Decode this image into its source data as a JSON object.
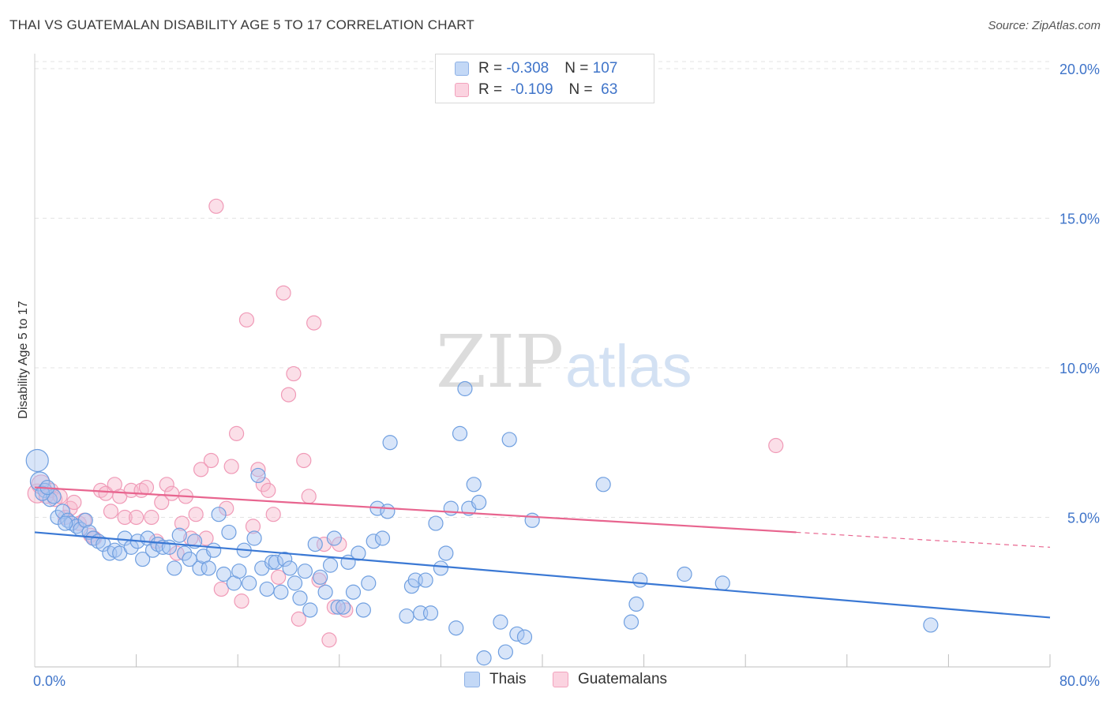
{
  "header": {
    "title": "THAI VS GUATEMALAN DISABILITY AGE 5 TO 17 CORRELATION CHART",
    "source": "Source: ZipAtlas.com"
  },
  "watermark": {
    "zip": "ZIP",
    "atlas": "atlas"
  },
  "legend": {
    "rows": [
      {
        "r_label": "R = ",
        "r_value": "-0.308",
        "n_label": "N = ",
        "n_value": "107",
        "color": "#a9c6f2"
      },
      {
        "r_label": "R = ",
        "r_value": " -0.109",
        "n_label": "N = ",
        "n_value": " 63",
        "color": "#f7b8cc"
      }
    ]
  },
  "bottom_legend": [
    {
      "label": "Thais",
      "color": "#a9c6f2"
    },
    {
      "label": "Guatemalans",
      "color": "#f7b8cc"
    }
  ],
  "chart_data": {
    "type": "scatter",
    "title": "THAI VS GUATEMALAN DISABILITY AGE 5 TO 17 CORRELATION CHART",
    "xlabel": "",
    "ylabel": "Disability Age 5 to 17",
    "xlim": [
      0,
      80
    ],
    "ylim": [
      0,
      20.5
    ],
    "x_tick_labels": [
      "0.0%",
      "80.0%"
    ],
    "y_ticks": [
      5,
      10,
      15,
      20
    ],
    "y_tick_labels": [
      "5.0%",
      "10.0%",
      "15.0%",
      "20.0%"
    ],
    "grid": true,
    "legend_position": "top-center",
    "colors": {
      "thais": "#3a78d4",
      "guatemalans": "#e8658f"
    },
    "series": [
      {
        "name": "Thais",
        "r": -0.308,
        "n": 107,
        "trend": {
          "x": [
            0,
            80
          ],
          "y": [
            4.5,
            1.65
          ]
        },
        "points": [
          [
            0.2,
            6.9
          ],
          [
            0.4,
            6.2
          ],
          [
            0.8,
            5.9
          ],
          [
            1.2,
            5.6
          ],
          [
            1.5,
            5.7
          ],
          [
            1.8,
            5.0
          ],
          [
            2.2,
            5.2
          ],
          [
            2.6,
            4.9
          ],
          [
            2.9,
            4.8
          ],
          [
            3.3,
            4.7
          ],
          [
            3.6,
            4.6
          ],
          [
            4.0,
            4.9
          ],
          [
            4.3,
            4.5
          ],
          [
            4.6,
            4.3
          ],
          [
            5.0,
            4.2
          ],
          [
            5.4,
            4.1
          ],
          [
            5.9,
            3.8
          ],
          [
            6.3,
            3.9
          ],
          [
            6.7,
            3.8
          ],
          [
            7.1,
            4.3
          ],
          [
            7.6,
            4.0
          ],
          [
            8.1,
            4.2
          ],
          [
            8.5,
            3.6
          ],
          [
            8.9,
            4.3
          ],
          [
            9.3,
            3.9
          ],
          [
            9.7,
            4.1
          ],
          [
            10.1,
            4.0
          ],
          [
            10.6,
            4.0
          ],
          [
            11.0,
            3.3
          ],
          [
            11.4,
            4.4
          ],
          [
            11.8,
            3.8
          ],
          [
            12.2,
            3.6
          ],
          [
            12.6,
            4.2
          ],
          [
            13.0,
            3.3
          ],
          [
            13.3,
            3.7
          ],
          [
            13.7,
            3.3
          ],
          [
            14.1,
            3.9
          ],
          [
            14.5,
            5.1
          ],
          [
            14.9,
            3.1
          ],
          [
            15.3,
            4.5
          ],
          [
            15.7,
            2.8
          ],
          [
            16.1,
            3.2
          ],
          [
            16.5,
            3.9
          ],
          [
            16.9,
            2.8
          ],
          [
            17.3,
            4.3
          ],
          [
            17.6,
            6.4
          ],
          [
            17.9,
            3.3
          ],
          [
            18.3,
            2.6
          ],
          [
            18.7,
            3.5
          ],
          [
            19.0,
            3.5
          ],
          [
            19.4,
            2.5
          ],
          [
            19.7,
            3.6
          ],
          [
            20.1,
            3.3
          ],
          [
            20.5,
            2.8
          ],
          [
            20.9,
            2.3
          ],
          [
            21.3,
            3.2
          ],
          [
            21.7,
            1.9
          ],
          [
            22.1,
            4.1
          ],
          [
            22.5,
            3.0
          ],
          [
            22.9,
            2.5
          ],
          [
            23.3,
            3.4
          ],
          [
            23.6,
            4.3
          ],
          [
            23.9,
            2.0
          ],
          [
            24.3,
            2.0
          ],
          [
            24.7,
            3.5
          ],
          [
            25.1,
            2.5
          ],
          [
            25.5,
            3.8
          ],
          [
            25.9,
            1.9
          ],
          [
            26.3,
            2.8
          ],
          [
            26.7,
            4.2
          ],
          [
            27.0,
            5.3
          ],
          [
            27.4,
            4.3
          ],
          [
            27.8,
            5.2
          ],
          [
            28.0,
            7.5
          ],
          [
            29.3,
            1.7
          ],
          [
            29.7,
            2.7
          ],
          [
            30.0,
            2.9
          ],
          [
            30.4,
            1.8
          ],
          [
            30.8,
            2.9
          ],
          [
            31.2,
            1.8
          ],
          [
            31.6,
            4.8
          ],
          [
            32.0,
            3.3
          ],
          [
            32.4,
            3.8
          ],
          [
            32.8,
            5.3
          ],
          [
            33.2,
            1.3
          ],
          [
            33.5,
            7.8
          ],
          [
            33.9,
            9.3
          ],
          [
            34.2,
            5.3
          ],
          [
            34.6,
            6.1
          ],
          [
            35.0,
            5.5
          ],
          [
            35.4,
            0.3
          ],
          [
            36.7,
            1.5
          ],
          [
            37.1,
            0.5
          ],
          [
            37.4,
            7.6
          ],
          [
            38.0,
            1.1
          ],
          [
            38.6,
            1.0
          ],
          [
            39.2,
            4.9
          ],
          [
            44.8,
            6.1
          ],
          [
            47.0,
            1.5
          ],
          [
            47.4,
            2.1
          ],
          [
            47.7,
            2.9
          ],
          [
            51.2,
            3.1
          ],
          [
            54.2,
            2.8
          ],
          [
            70.6,
            1.4
          ],
          [
            0.6,
            5.8
          ],
          [
            1.0,
            6.0
          ],
          [
            2.4,
            4.8
          ]
        ]
      },
      {
        "name": "Guatemalans",
        "r": -0.109,
        "n": 63,
        "trend": {
          "x": [
            0,
            60
          ],
          "y": [
            6.0,
            4.5
          ]
        },
        "trend_extension": {
          "x": [
            60,
            80
          ],
          "y": [
            4.5,
            4.0
          ]
        },
        "points": [
          [
            0.2,
            5.8
          ],
          [
            0.5,
            6.1
          ],
          [
            0.9,
            5.7
          ],
          [
            1.3,
            5.9
          ],
          [
            1.6,
            5.6
          ],
          [
            2.0,
            5.7
          ],
          [
            2.4,
            5.0
          ],
          [
            2.8,
            5.3
          ],
          [
            3.1,
            5.5
          ],
          [
            3.5,
            4.8
          ],
          [
            3.9,
            4.9
          ],
          [
            4.4,
            4.4
          ],
          [
            4.7,
            4.3
          ],
          [
            5.2,
            5.9
          ],
          [
            5.6,
            5.8
          ],
          [
            6.0,
            5.2
          ],
          [
            6.3,
            6.1
          ],
          [
            6.7,
            5.7
          ],
          [
            7.1,
            5.0
          ],
          [
            7.6,
            5.9
          ],
          [
            8.0,
            5.0
          ],
          [
            8.4,
            5.9
          ],
          [
            8.8,
            6.0
          ],
          [
            9.2,
            5.0
          ],
          [
            9.6,
            4.2
          ],
          [
            10.0,
            5.5
          ],
          [
            10.4,
            6.1
          ],
          [
            10.8,
            5.8
          ],
          [
            11.2,
            3.8
          ],
          [
            11.6,
            4.8
          ],
          [
            11.9,
            5.7
          ],
          [
            12.3,
            4.3
          ],
          [
            12.7,
            5.1
          ],
          [
            13.1,
            6.6
          ],
          [
            13.5,
            4.3
          ],
          [
            13.9,
            6.9
          ],
          [
            14.3,
            15.4
          ],
          [
            14.7,
            2.6
          ],
          [
            15.1,
            5.3
          ],
          [
            15.5,
            6.7
          ],
          [
            15.9,
            7.8
          ],
          [
            16.3,
            2.2
          ],
          [
            16.7,
            11.6
          ],
          [
            17.2,
            4.7
          ],
          [
            17.6,
            6.6
          ],
          [
            18.0,
            6.1
          ],
          [
            18.4,
            5.9
          ],
          [
            18.8,
            5.1
          ],
          [
            19.2,
            3.0
          ],
          [
            19.6,
            12.5
          ],
          [
            20.0,
            9.1
          ],
          [
            20.4,
            9.8
          ],
          [
            20.8,
            1.6
          ],
          [
            21.2,
            6.9
          ],
          [
            21.6,
            5.7
          ],
          [
            22.0,
            11.5
          ],
          [
            22.4,
            2.9
          ],
          [
            22.8,
            4.1
          ],
          [
            23.2,
            0.9
          ],
          [
            23.6,
            2.0
          ],
          [
            24.0,
            4.1
          ],
          [
            24.5,
            1.9
          ],
          [
            58.4,
            7.4
          ]
        ]
      }
    ]
  }
}
